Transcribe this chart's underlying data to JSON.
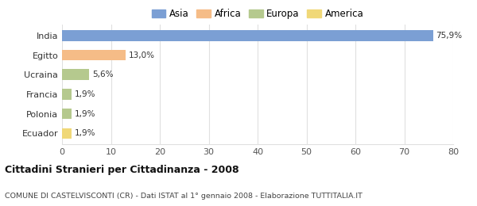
{
  "categories": [
    "India",
    "Egitto",
    "Ucraina",
    "Francia",
    "Polonia",
    "Ecuador"
  ],
  "values": [
    75.9,
    13.0,
    5.6,
    1.9,
    1.9,
    1.9
  ],
  "labels": [
    "75,9%",
    "13,0%",
    "5,6%",
    "1,9%",
    "1,9%",
    "1,9%"
  ],
  "bar_colors": [
    "#7b9fd4",
    "#f5bc87",
    "#b5c98e",
    "#b5c98e",
    "#b5c98e",
    "#f0d878"
  ],
  "legend_labels": [
    "Asia",
    "Africa",
    "Europa",
    "America"
  ],
  "legend_colors": [
    "#7b9fd4",
    "#f5bc87",
    "#b5c98e",
    "#f0d878"
  ],
  "title": "Cittadini Stranieri per Cittadinanza - 2008",
  "subtitle": "COMUNE DI CASTELVISCONTI (CR) - Dati ISTAT al 1° gennaio 2008 - Elaborazione TUTTITALIA.IT",
  "xlim": [
    0,
    80
  ],
  "xticks": [
    0,
    10,
    20,
    30,
    40,
    50,
    60,
    70,
    80
  ],
  "background_color": "#ffffff",
  "plot_bg_color": "#ffffff",
  "grid_color": "#e0e0e0"
}
